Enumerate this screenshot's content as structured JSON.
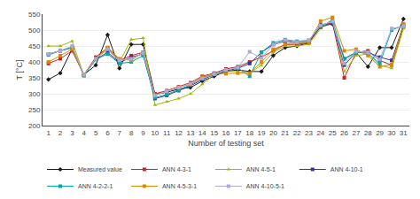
{
  "chart_data": {
    "type": "line",
    "xlabel": "Number of testing set",
    "ylabel": "T [°C]",
    "x": [
      1,
      2,
      3,
      4,
      5,
      6,
      7,
      8,
      9,
      10,
      11,
      12,
      13,
      14,
      15,
      16,
      17,
      18,
      19,
      20,
      21,
      22,
      23,
      24,
      25,
      26,
      27,
      28,
      29,
      30,
      31
    ],
    "xlim": [
      0.5,
      31.5
    ],
    "xticks": [
      1,
      2,
      3,
      4,
      5,
      6,
      7,
      8,
      9,
      10,
      11,
      12,
      13,
      14,
      15,
      16,
      17,
      18,
      19,
      20,
      21,
      22,
      23,
      24,
      25,
      26,
      27,
      28,
      29,
      30,
      31
    ],
    "ylim": [
      200,
      550
    ],
    "yticks": [
      200,
      250,
      300,
      350,
      400,
      450,
      500,
      550
    ],
    "grid": "y",
    "legend": "bottom",
    "series": [
      {
        "name": "Measured value",
        "color": "#1a1a1a",
        "marker": "diamond",
        "values": [
          345,
          365,
          440,
          360,
          390,
          485,
          380,
          455,
          455,
          298,
          305,
          315,
          320,
          340,
          355,
          370,
          375,
          370,
          370,
          420,
          445,
          450,
          460,
          518,
          520,
          410,
          430,
          385,
          445,
          445,
          535
        ]
      },
      {
        "name": "ANN 4-3-1",
        "color": "#cc2222",
        "marker": "square",
        "values": [
          395,
          410,
          435,
          360,
          415,
          445,
          405,
          420,
          430,
          300,
          310,
          322,
          335,
          355,
          365,
          378,
          385,
          400,
          415,
          435,
          455,
          455,
          460,
          510,
          525,
          350,
          430,
          435,
          405,
          390,
          510
        ]
      },
      {
        "name": "ANN 4-5-1",
        "color": "#99bb00",
        "marker": "triangle-up",
        "values": [
          450,
          450,
          465,
          358,
          410,
          440,
          400,
          470,
          475,
          265,
          275,
          285,
          300,
          330,
          360,
          370,
          370,
          365,
          390,
          430,
          450,
          450,
          455,
          505,
          535,
          370,
          420,
          425,
          390,
          380,
          505
        ]
      },
      {
        "name": "ANN 4-10-1",
        "color": "#333399",
        "marker": "square",
        "values": [
          425,
          435,
          445,
          358,
          408,
          430,
          398,
          415,
          425,
          285,
          295,
          310,
          325,
          345,
          360,
          372,
          380,
          395,
          430,
          455,
          465,
          460,
          465,
          510,
          520,
          390,
          430,
          430,
          415,
          405,
          515
        ]
      },
      {
        "name": "ANN 4-2-2-1",
        "color": "#00aaaa",
        "marker": "square",
        "values": [
          422,
          435,
          445,
          357,
          408,
          425,
          395,
          400,
          420,
          288,
          298,
          312,
          328,
          350,
          362,
          375,
          382,
          355,
          430,
          460,
          470,
          465,
          468,
          512,
          530,
          410,
          430,
          427,
          395,
          500,
          515
        ]
      },
      {
        "name": "ANN 4-5-3-1",
        "color": "#dd8800",
        "marker": "square",
        "values": [
          400,
          420,
          440,
          360,
          410,
          445,
          410,
          405,
          430,
          295,
          308,
          320,
          330,
          352,
          363,
          363,
          365,
          365,
          400,
          440,
          455,
          460,
          462,
          528,
          540,
          435,
          440,
          420,
          385,
          392,
          520
        ]
      },
      {
        "name": "ANN 4-10-5-1",
        "color": "#aaaadd",
        "marker": "square",
        "values": [
          425,
          435,
          450,
          360,
          410,
          440,
          405,
          410,
          428,
          295,
          308,
          320,
          332,
          348,
          362,
          375,
          382,
          432,
          412,
          455,
          468,
          462,
          468,
          515,
          527,
          395,
          433,
          430,
          408,
          505,
          512
        ]
      }
    ]
  }
}
